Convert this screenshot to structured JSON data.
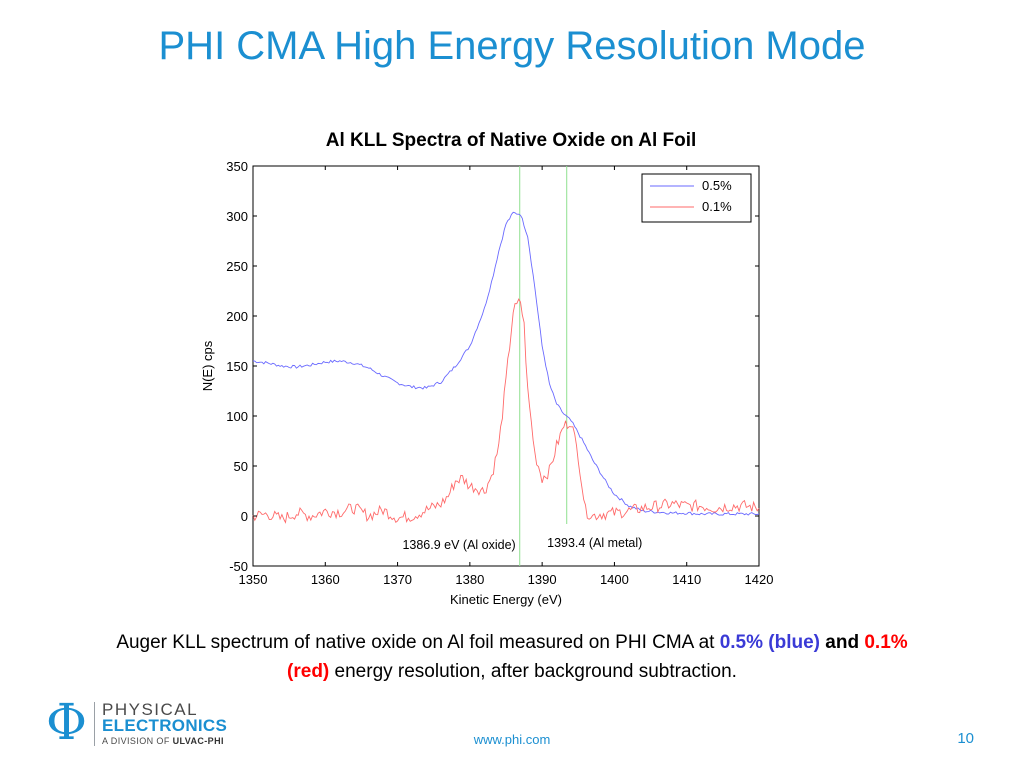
{
  "slide": {
    "title": "PHI CMA High Energy Resolution Mode",
    "caption": {
      "part1": "Auger KLL spectrum of native oxide on Al foil measured on PHI CMA at ",
      "blue_text": "0.5% (blue)",
      "and_text": " and ",
      "red_text": "0.1% (red)",
      "part2": "  energy resolution, after background subtraction."
    },
    "footer_url": "www.phi.com",
    "page_number": "10",
    "logo": {
      "symbol": "Φ",
      "line1": "PHYSICAL",
      "line2": "ELECTRONICS",
      "line3_prefix": "A DIVISION OF ",
      "line3_brand": "ULVAC-PHI"
    },
    "colors": {
      "accent": "#1b8fd1",
      "blue_series": "#6a6aff",
      "red_series": "#ff6a6a",
      "marker_lines": "#90e090"
    }
  },
  "chart_data": {
    "type": "line",
    "title": "Al KLL Spectra of Native Oxide on Al Foil",
    "xlabel": "Kinetic Energy (eV)",
    "ylabel": "N(E) cps",
    "xlim": [
      1350,
      1420
    ],
    "ylim": [
      -50,
      350
    ],
    "x_ticks": [
      1350,
      1360,
      1370,
      1380,
      1390,
      1400,
      1410,
      1420
    ],
    "y_ticks": [
      -50,
      0,
      50,
      100,
      150,
      200,
      250,
      300,
      350
    ],
    "grid": false,
    "legend_position": "top-right",
    "series": [
      {
        "name": "0.5%",
        "color": "#6a6aff",
        "x": [
          1350,
          1352,
          1354,
          1356,
          1358,
          1360,
          1362,
          1364,
          1366,
          1368,
          1370,
          1372,
          1374,
          1376,
          1378,
          1380,
          1382,
          1383,
          1384,
          1385,
          1386,
          1387,
          1388,
          1389,
          1390,
          1391,
          1392,
          1393,
          1394,
          1395,
          1396,
          1397,
          1398,
          1399,
          1400,
          1402,
          1404,
          1406,
          1408,
          1410,
          1412,
          1414,
          1416,
          1418,
          1420
        ],
        "y": [
          155,
          153,
          150,
          149,
          151,
          154,
          155,
          153,
          148,
          140,
          133,
          129,
          128,
          134,
          150,
          170,
          207,
          234,
          265,
          292,
          303,
          302,
          280,
          228,
          170,
          132,
          112,
          102,
          95,
          83,
          70,
          56,
          44,
          32,
          22,
          10,
          5,
          4,
          3,
          3,
          2,
          2,
          2,
          2,
          2
        ]
      },
      {
        "name": "0.1%",
        "color": "#ff6a6a",
        "x": [
          1350,
          1352,
          1354,
          1356,
          1358,
          1360,
          1362,
          1364,
          1366,
          1368,
          1370,
          1372,
          1374,
          1376,
          1377,
          1378,
          1379,
          1380,
          1381,
          1382,
          1383,
          1384,
          1385,
          1386,
          1387,
          1387.5,
          1388,
          1389,
          1390,
          1391,
          1392,
          1393,
          1394,
          1395,
          1396,
          1397,
          1398,
          1400,
          1402,
          1404,
          1406,
          1408,
          1410,
          1412,
          1414,
          1416,
          1418,
          1420
        ],
        "y": [
          0,
          2,
          -3,
          3,
          0,
          5,
          4,
          8,
          0,
          6,
          -2,
          0,
          6,
          12,
          20,
          35,
          38,
          30,
          28,
          25,
          40,
          70,
          135,
          205,
          215,
          190,
          125,
          62,
          38,
          45,
          70,
          90,
          95,
          60,
          5,
          0,
          2,
          3,
          5,
          8,
          10,
          12,
          10,
          10,
          8,
          10,
          10,
          8
        ]
      }
    ],
    "reference_lines": [
      {
        "x": 1386.9,
        "label": "1386.9 eV (Al oxide)"
      },
      {
        "x": 1393.4,
        "label": "1393.4 (Al metal)"
      }
    ]
  }
}
